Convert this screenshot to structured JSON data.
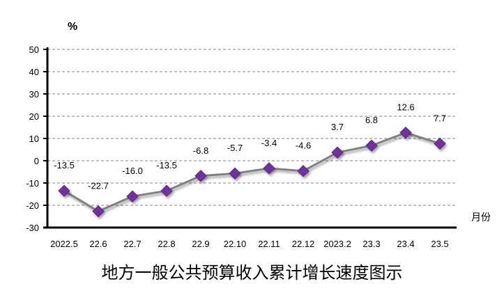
{
  "chart_data": {
    "type": "line",
    "title": "地方一般公共预算收入累计增长速度图示",
    "ylabel": "%",
    "xlabel": "月份",
    "categories": [
      "2022.5",
      "22.6",
      "22.7",
      "22.8",
      "22.9",
      "22.10",
      "22.11",
      "22.12",
      "2023.2",
      "23.3",
      "23.4",
      "23.5"
    ],
    "values": [
      -13.5,
      -22.7,
      -16.0,
      -13.5,
      -6.8,
      -5.7,
      -3.4,
      -4.6,
      3.7,
      6.8,
      12.6,
      7.7
    ],
    "data_labels": [
      "-13.5",
      "-22.7",
      "-16.0",
      "-13.5",
      "-6.8",
      "-5.7",
      "-3.4",
      "-4.6",
      "3.7",
      "6.8",
      "12.6",
      "7.7"
    ],
    "ylim": [
      -30,
      50
    ],
    "yticks": [
      50,
      40,
      30,
      20,
      10,
      0,
      -10,
      -20,
      -30
    ],
    "grid": true,
    "legend": "none",
    "colors": {
      "line": "#808080",
      "marker": "#7030A0",
      "grid": "#808080"
    }
  }
}
